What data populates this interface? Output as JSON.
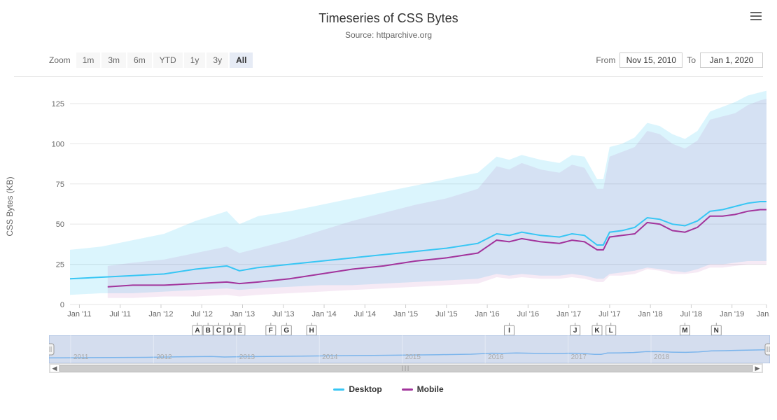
{
  "title": "Timeseries of CSS Bytes",
  "subtitle": "Source: httparchive.org",
  "yAxis": {
    "label": "CSS Bytes (KB)",
    "ticks": [
      0,
      25,
      50,
      75,
      100,
      125
    ],
    "min": 0,
    "max": 135
  },
  "zoom": {
    "label": "Zoom",
    "options": [
      "1m",
      "3m",
      "6m",
      "YTD",
      "1y",
      "3y",
      "All"
    ],
    "active": "All"
  },
  "range": {
    "fromLabel": "From",
    "from": "Nov 15, 2010",
    "toLabel": "To",
    "to": "Jan 1, 2020"
  },
  "xTicks": [
    "Jan '11",
    "Jul '11",
    "Jan '12",
    "Jul '12",
    "Jan '13",
    "Jul '13",
    "Jan '14",
    "Jul '14",
    "Jan '15",
    "Jul '15",
    "Jan '16",
    "Jul '16",
    "Jan '17",
    "Jul '17",
    "Jan '18",
    "Jul '18",
    "Jan '19",
    "Jan…"
  ],
  "xTickPositions": [
    1.5,
    8.0,
    14.5,
    21.0,
    27.5,
    34.0,
    40.5,
    47.0,
    53.5,
    60.0,
    66.5,
    73.0,
    79.5,
    86.0,
    92.5,
    99.0,
    105.5,
    111.0
  ],
  "xDomain": {
    "min": 0,
    "max": 111
  },
  "colors": {
    "desktopLine": "#37c6f4",
    "desktopArea": "rgba(55,198,244,0.18)",
    "mobileLine": "#a2349c",
    "mobileArea": "rgba(162,52,156,0.10)",
    "grid": "#e6e6e6",
    "navMask": "rgba(102,133,194,0.28)",
    "navLine": "#7cb5ec",
    "navMaskBorder": "#9db7dd"
  },
  "legend": [
    {
      "label": "Desktop",
      "colorKey": "desktopLine"
    },
    {
      "label": "Mobile",
      "colorKey": "mobileLine"
    }
  ],
  "flags": [
    {
      "label": "A",
      "x": 20.3
    },
    {
      "label": "B",
      "x": 22.0
    },
    {
      "label": "C",
      "x": 23.7
    },
    {
      "label": "D",
      "x": 25.4
    },
    {
      "label": "E",
      "x": 27.1
    },
    {
      "label": "F",
      "x": 32.0
    },
    {
      "label": "G",
      "x": 34.5
    },
    {
      "label": "H",
      "x": 38.5
    },
    {
      "label": "I",
      "x": 70.0
    },
    {
      "label": "J",
      "x": 80.5
    },
    {
      "label": "K",
      "x": 84.0
    },
    {
      "label": "L",
      "x": 86.2
    },
    {
      "label": "M",
      "x": 98.0
    },
    {
      "label": "N",
      "x": 103.0
    }
  ],
  "series": {
    "desktop": {
      "median": [
        [
          0,
          16
        ],
        [
          5,
          17
        ],
        [
          10,
          18
        ],
        [
          15,
          19
        ],
        [
          20,
          22
        ],
        [
          25,
          24
        ],
        [
          27,
          21
        ],
        [
          30,
          23
        ],
        [
          35,
          25
        ],
        [
          40,
          27
        ],
        [
          45,
          29
        ],
        [
          50,
          31
        ],
        [
          55,
          33
        ],
        [
          60,
          35
        ],
        [
          65,
          38
        ],
        [
          68,
          44
        ],
        [
          70,
          43
        ],
        [
          72,
          45
        ],
        [
          75,
          43
        ],
        [
          78,
          42
        ],
        [
          80,
          44
        ],
        [
          82,
          43
        ],
        [
          84,
          37
        ],
        [
          85,
          37
        ],
        [
          86,
          45
        ],
        [
          88,
          46
        ],
        [
          90,
          48
        ],
        [
          92,
          54
        ],
        [
          94,
          53
        ],
        [
          96,
          50
        ],
        [
          98,
          49
        ],
        [
          100,
          52
        ],
        [
          102,
          58
        ],
        [
          104,
          59
        ],
        [
          106,
          61
        ],
        [
          108,
          63
        ],
        [
          110,
          64
        ],
        [
          111,
          64
        ]
      ],
      "upper": [
        [
          0,
          34
        ],
        [
          5,
          36
        ],
        [
          10,
          40
        ],
        [
          15,
          44
        ],
        [
          20,
          52
        ],
        [
          25,
          58
        ],
        [
          27,
          50
        ],
        [
          30,
          55
        ],
        [
          35,
          58
        ],
        [
          40,
          62
        ],
        [
          45,
          66
        ],
        [
          50,
          70
        ],
        [
          55,
          74
        ],
        [
          60,
          78
        ],
        [
          65,
          82
        ],
        [
          68,
          92
        ],
        [
          70,
          90
        ],
        [
          72,
          93
        ],
        [
          75,
          90
        ],
        [
          78,
          88
        ],
        [
          80,
          93
        ],
        [
          82,
          92
        ],
        [
          84,
          78
        ],
        [
          85,
          78
        ],
        [
          86,
          98
        ],
        [
          88,
          100
        ],
        [
          90,
          104
        ],
        [
          92,
          113
        ],
        [
          94,
          111
        ],
        [
          96,
          106
        ],
        [
          98,
          103
        ],
        [
          100,
          108
        ],
        [
          102,
          120
        ],
        [
          104,
          123
        ],
        [
          106,
          126
        ],
        [
          108,
          130
        ],
        [
          110,
          132
        ],
        [
          111,
          133
        ]
      ],
      "lower": [
        [
          0,
          6
        ],
        [
          5,
          7
        ],
        [
          10,
          7
        ],
        [
          15,
          8
        ],
        [
          20,
          9
        ],
        [
          25,
          10
        ],
        [
          27,
          9
        ],
        [
          30,
          10
        ],
        [
          35,
          11
        ],
        [
          40,
          12
        ],
        [
          45,
          12
        ],
        [
          50,
          13
        ],
        [
          55,
          14
        ],
        [
          60,
          15
        ],
        [
          65,
          16
        ],
        [
          68,
          19
        ],
        [
          70,
          18
        ],
        [
          72,
          19
        ],
        [
          75,
          18
        ],
        [
          78,
          18
        ],
        [
          80,
          19
        ],
        [
          82,
          18
        ],
        [
          84,
          16
        ],
        [
          85,
          16
        ],
        [
          86,
          19
        ],
        [
          88,
          20
        ],
        [
          90,
          21
        ],
        [
          92,
          23
        ],
        [
          94,
          22
        ],
        [
          96,
          21
        ],
        [
          98,
          20
        ],
        [
          100,
          22
        ],
        [
          102,
          25
        ],
        [
          104,
          25
        ],
        [
          106,
          26
        ],
        [
          108,
          27
        ],
        [
          110,
          27
        ],
        [
          111,
          27
        ]
      ]
    },
    "mobile": {
      "median": [
        [
          6,
          11
        ],
        [
          10,
          12
        ],
        [
          15,
          12
        ],
        [
          20,
          13
        ],
        [
          25,
          14
        ],
        [
          27,
          13
        ],
        [
          30,
          14
        ],
        [
          35,
          16
        ],
        [
          40,
          19
        ],
        [
          45,
          22
        ],
        [
          50,
          24
        ],
        [
          55,
          27
        ],
        [
          60,
          29
        ],
        [
          65,
          32
        ],
        [
          68,
          40
        ],
        [
          70,
          39
        ],
        [
          72,
          41
        ],
        [
          75,
          39
        ],
        [
          78,
          38
        ],
        [
          80,
          40
        ],
        [
          82,
          39
        ],
        [
          84,
          34
        ],
        [
          85,
          34
        ],
        [
          86,
          42
        ],
        [
          88,
          43
        ],
        [
          90,
          44
        ],
        [
          92,
          51
        ],
        [
          94,
          50
        ],
        [
          96,
          46
        ],
        [
          98,
          45
        ],
        [
          100,
          48
        ],
        [
          102,
          55
        ],
        [
          104,
          55
        ],
        [
          106,
          56
        ],
        [
          108,
          58
        ],
        [
          110,
          59
        ],
        [
          111,
          59
        ]
      ],
      "upper": [
        [
          6,
          24
        ],
        [
          10,
          26
        ],
        [
          15,
          28
        ],
        [
          20,
          32
        ],
        [
          25,
          36
        ],
        [
          27,
          32
        ],
        [
          30,
          35
        ],
        [
          35,
          40
        ],
        [
          40,
          46
        ],
        [
          45,
          52
        ],
        [
          50,
          57
        ],
        [
          55,
          62
        ],
        [
          60,
          66
        ],
        [
          65,
          72
        ],
        [
          68,
          86
        ],
        [
          70,
          84
        ],
        [
          72,
          88
        ],
        [
          75,
          84
        ],
        [
          78,
          82
        ],
        [
          80,
          87
        ],
        [
          82,
          85
        ],
        [
          84,
          72
        ],
        [
          85,
          72
        ],
        [
          86,
          92
        ],
        [
          88,
          95
        ],
        [
          90,
          98
        ],
        [
          92,
          108
        ],
        [
          94,
          106
        ],
        [
          96,
          100
        ],
        [
          98,
          97
        ],
        [
          100,
          102
        ],
        [
          102,
          115
        ],
        [
          104,
          117
        ],
        [
          106,
          119
        ],
        [
          108,
          124
        ],
        [
          110,
          127
        ],
        [
          111,
          128
        ]
      ],
      "lower": [
        [
          6,
          4
        ],
        [
          10,
          4
        ],
        [
          15,
          5
        ],
        [
          20,
          5
        ],
        [
          25,
          6
        ],
        [
          27,
          5
        ],
        [
          30,
          6
        ],
        [
          35,
          7
        ],
        [
          40,
          8
        ],
        [
          45,
          9
        ],
        [
          50,
          10
        ],
        [
          55,
          11
        ],
        [
          60,
          12
        ],
        [
          65,
          13
        ],
        [
          68,
          17
        ],
        [
          70,
          16
        ],
        [
          72,
          17
        ],
        [
          75,
          16
        ],
        [
          78,
          16
        ],
        [
          80,
          17
        ],
        [
          82,
          16
        ],
        [
          84,
          14
        ],
        [
          85,
          14
        ],
        [
          86,
          18
        ],
        [
          88,
          18
        ],
        [
          90,
          19
        ],
        [
          92,
          22
        ],
        [
          94,
          21
        ],
        [
          96,
          19
        ],
        [
          98,
          19
        ],
        [
          100,
          20
        ],
        [
          102,
          23
        ],
        [
          104,
          23
        ],
        [
          106,
          24
        ],
        [
          108,
          25
        ],
        [
          110,
          25
        ],
        [
          111,
          25
        ]
      ]
    }
  },
  "navigator": {
    "years": [
      "2011",
      "2012",
      "2013",
      "2014",
      "2015",
      "2016",
      "2017",
      "2018"
    ],
    "yearPositions": [
      0.03,
      0.145,
      0.26,
      0.375,
      0.49,
      0.605,
      0.72,
      0.835
    ]
  }
}
